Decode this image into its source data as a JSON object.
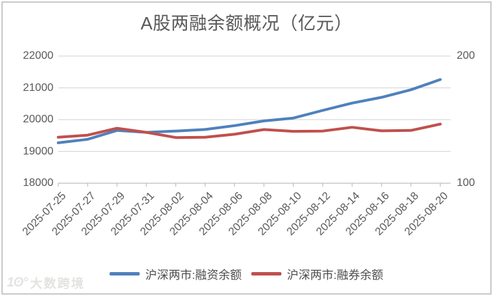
{
  "chart_data": {
    "type": "line",
    "title": "A股两融余额概况（亿元）",
    "categories": [
      "2025-07-25",
      "2025-07-27",
      "2025-07-29",
      "2025-07-31",
      "2025-08-02",
      "2025-08-04",
      "2025-08-06",
      "2025-08-08",
      "2025-08-10",
      "2025-08-12",
      "2025-08-14",
      "2025-08-16",
      "2025-08-18",
      "2025-08-20"
    ],
    "series": [
      {
        "name": "沪深两市:融资余额",
        "axis": "left",
        "color": "#4f81bd",
        "values": [
          19270,
          19380,
          19660,
          19600,
          19640,
          19690,
          19810,
          19960,
          20050,
          20290,
          20520,
          20700,
          20940,
          21260
        ]
      },
      {
        "name": "沪深两市:融券余额",
        "axis": "right",
        "color": "#c0504d",
        "values": [
          136.2,
          137.8,
          143.2,
          140.0,
          135.9,
          136.2,
          138.5,
          142.2,
          140.8,
          141.0,
          144.0,
          141.2,
          141.5,
          146.5
        ]
      }
    ],
    "left_axis": {
      "min": 18000,
      "max": 22000,
      "ticks": [
        18000,
        19000,
        20000,
        21000,
        22000
      ]
    },
    "right_axis": {
      "min": 100,
      "max": 200,
      "ticks": [
        100,
        200
      ]
    },
    "grid": true,
    "legend_position": "bottom"
  },
  "watermark": {
    "logo": "1ʘ°",
    "text": "大数跨境"
  },
  "colors": {
    "grid": "#d9d9d9",
    "axis_line": "#bfbfbf",
    "axis_text": "#595959",
    "title_text": "#595959",
    "frame": "#c9c9c9",
    "line_blue": "#4f81bd",
    "line_red": "#c0504d"
  }
}
